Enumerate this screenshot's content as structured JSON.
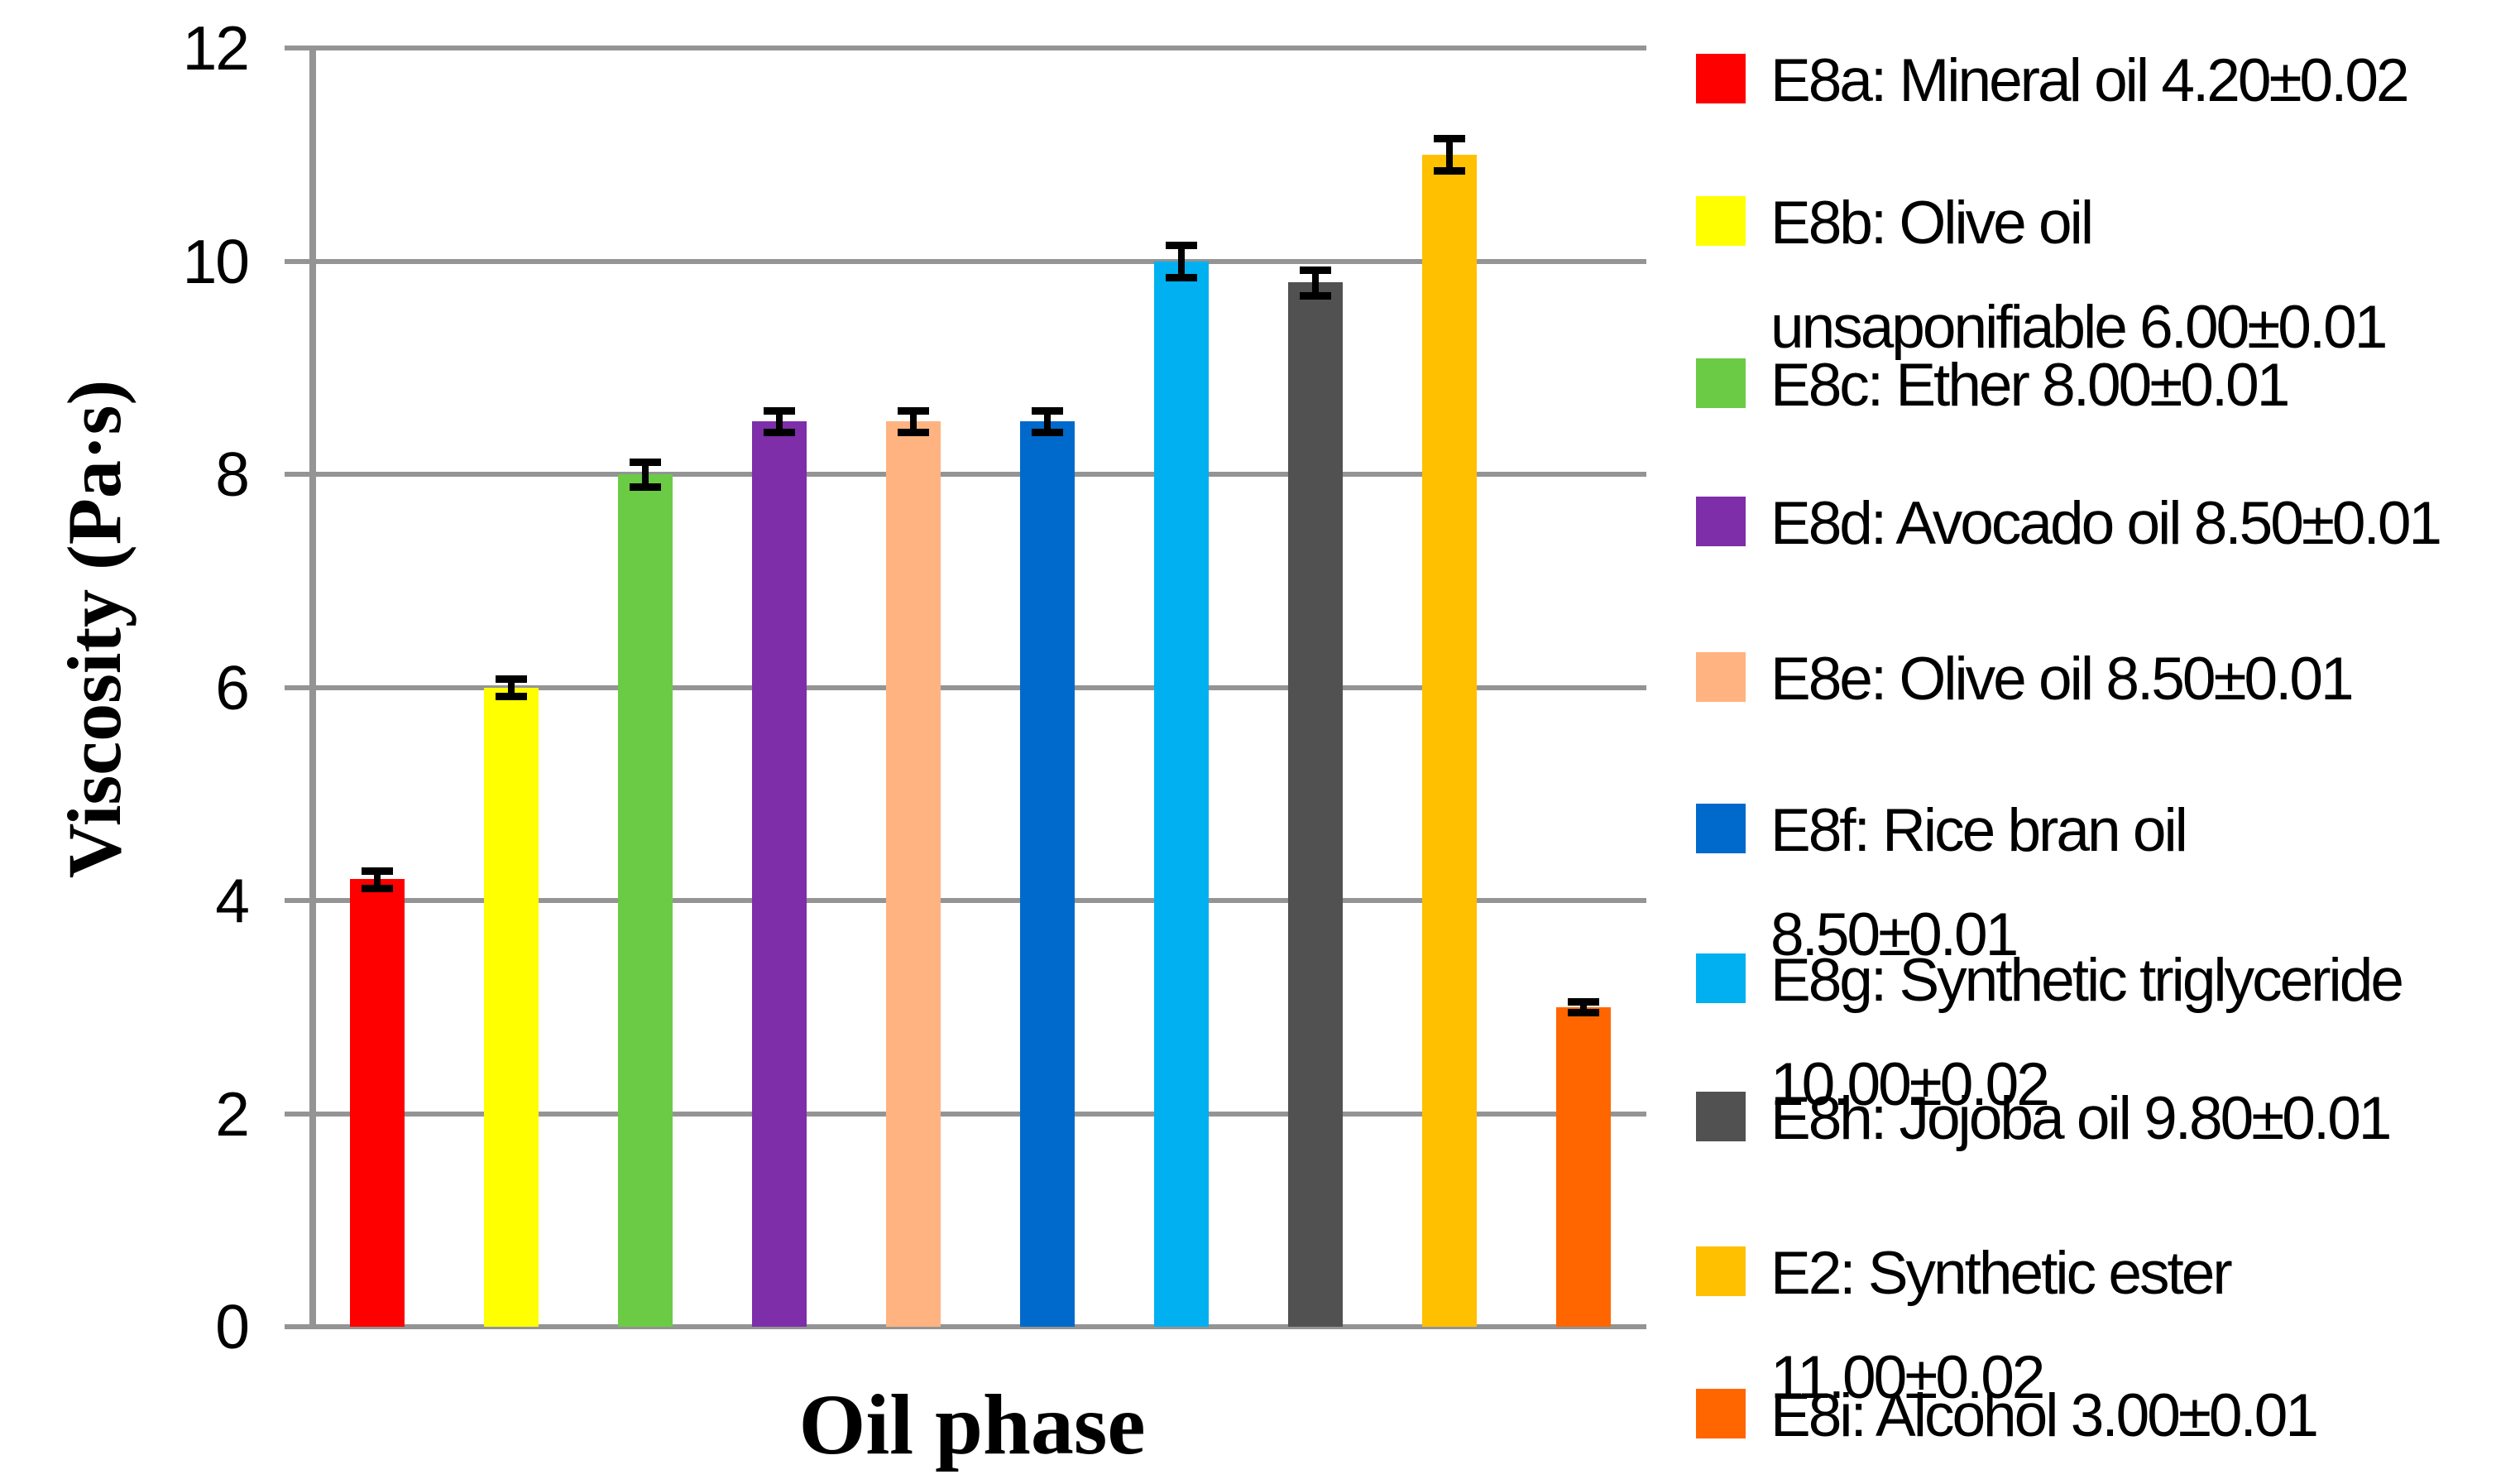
{
  "chart_data": {
    "type": "bar",
    "xlabel": "Oil phase",
    "ylabel": "Viscosity (Pa·s)",
    "ylim": [
      0,
      12
    ],
    "yticks": [
      0,
      2,
      4,
      6,
      8,
      10,
      12
    ],
    "ytick_labels": [
      "0",
      "2",
      "4",
      "6",
      "8",
      "10",
      "12"
    ],
    "grid": "horizontal",
    "gridline_color": "#949494",
    "legend_position": "right",
    "error_bars": true,
    "series": [
      {
        "id": "E8a",
        "name": "Mineral oil",
        "value": 4.2,
        "sd": 0.02,
        "color": "#FF0000",
        "legend_lines": [
          "E8a: Mineral oil 4.20±0.02"
        ],
        "error_bar_half_height": 0.08
      },
      {
        "id": "E8b",
        "name": "Olive oil unsaponifiable",
        "value": 6.0,
        "sd": 0.01,
        "color": "#FFFF00",
        "legend_lines": [
          "E8b: Olive oil",
          "unsaponifiable 6.00±0.01"
        ],
        "error_bar_half_height": 0.08
      },
      {
        "id": "E8c",
        "name": "Ether",
        "value": 8.0,
        "sd": 0.01,
        "color": "#6BCB45",
        "legend_lines": [
          "E8c: Ether 8.00±0.01"
        ],
        "error_bar_half_height": 0.12
      },
      {
        "id": "E8d",
        "name": "Avocado oil",
        "value": 8.5,
        "sd": 0.01,
        "color": "#7D2EA8",
        "legend_lines": [
          "E8d: Avocado oil 8.50±0.01"
        ],
        "error_bar_half_height": 0.1
      },
      {
        "id": "E8e",
        "name": "Olive oil",
        "value": 8.5,
        "sd": 0.01,
        "color": "#FFB380",
        "legend_lines": [
          "E8e: Olive oil 8.50±0.01"
        ],
        "error_bar_half_height": 0.1
      },
      {
        "id": "E8f",
        "name": "Rice bran oil",
        "value": 8.5,
        "sd": 0.01,
        "color": "#0069CC",
        "legend_lines": [
          "E8f: Rice bran oil",
          "8.50±0.01"
        ],
        "error_bar_half_height": 0.1
      },
      {
        "id": "E8g",
        "name": "Synthetic triglyceride",
        "value": 10.0,
        "sd": 0.02,
        "color": "#00B0F0",
        "legend_lines": [
          "E8g: Synthetic triglyceride",
          "10.00±0.02"
        ],
        "error_bar_half_height": 0.15
      },
      {
        "id": "E8h",
        "name": "Jojoba oil",
        "value": 9.8,
        "sd": 0.01,
        "color": "#515151",
        "legend_lines": [
          "E8h: Jojoba oil 9.80±0.01"
        ],
        "error_bar_half_height": 0.12
      },
      {
        "id": "E2",
        "name": "Synthetic ester",
        "value": 11.0,
        "sd": 0.02,
        "color": "#FFC000",
        "legend_lines": [
          "E2: Synthetic ester",
          "11.00±0.02"
        ],
        "error_bar_half_height": 0.15
      },
      {
        "id": "E8i",
        "name": "Alcohol",
        "value": 3.0,
        "sd": 0.01,
        "color": "#FF6600",
        "legend_lines": [
          "E8i: Alcohol 3.00±0.01"
        ],
        "error_bar_half_height": 0.05
      }
    ]
  }
}
